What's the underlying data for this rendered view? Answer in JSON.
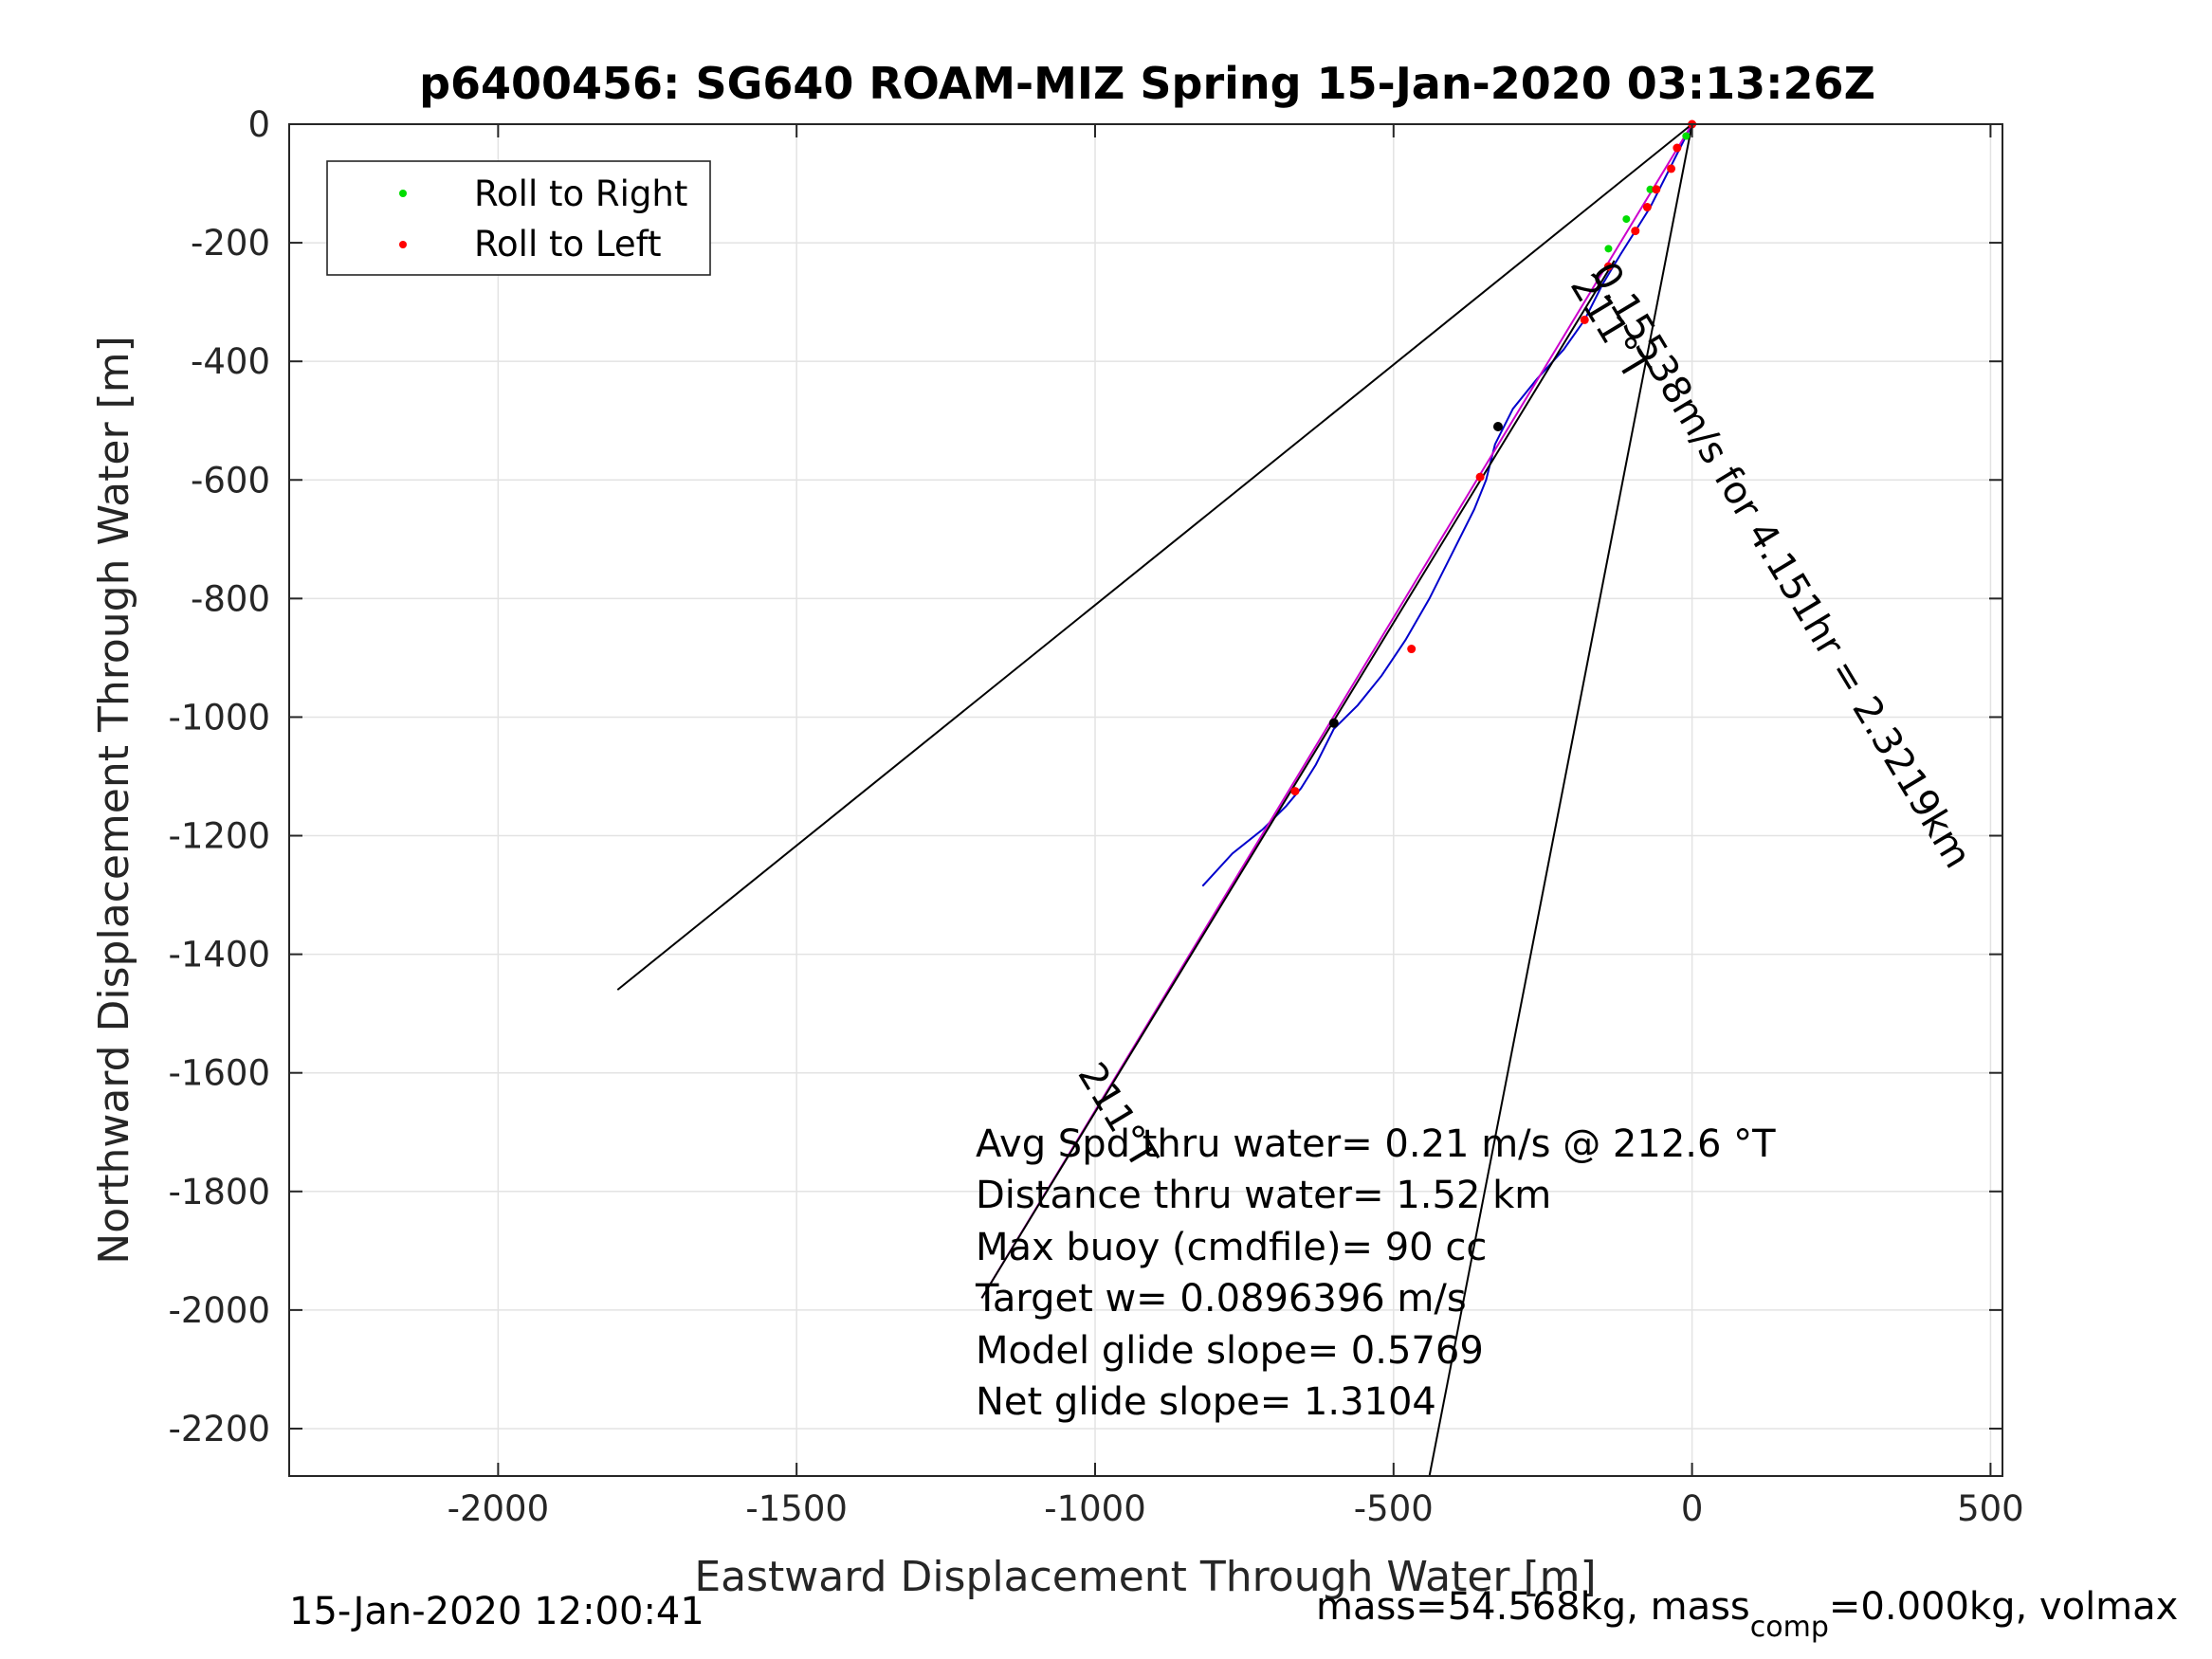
{
  "chart_data": {
    "type": "line",
    "title": "p6400456: SG640 ROAM-MIZ Spring 15-Jan-2020 03:13:26Z",
    "xlabel": "Eastward Displacement Through Water [m]",
    "ylabel": "Northward Displacement Through Water [m]",
    "xlim": [
      -2350,
      520
    ],
    "ylim": [
      -2280,
      0
    ],
    "xticks": [
      -2000,
      -1500,
      -1000,
      -500,
      0,
      500
    ],
    "yticks": [
      0,
      -200,
      -400,
      -600,
      -800,
      -1000,
      -1200,
      -1400,
      -1600,
      -1800,
      -2000,
      -2200
    ],
    "grid": true,
    "legend": {
      "placement": "top-left",
      "entries": [
        {
          "label": "Roll to Right",
          "color": "#00dd00"
        },
        {
          "label": "Roll to Left",
          "color": "#ff0000"
        }
      ]
    },
    "series": [
      {
        "kind": "track",
        "color": "#0000cc",
        "x": [
          0,
          -20,
          -45,
          -70,
          -95,
          -120,
          -150,
          -180,
          -215,
          -260,
          -300,
          -330,
          -345,
          -365,
          -400,
          -440,
          -480,
          -520,
          -560,
          -600,
          -630,
          -655,
          -680,
          -720,
          -770,
          -820
        ],
        "y": [
          0,
          -40,
          -90,
          -140,
          -180,
          -220,
          -270,
          -330,
          -380,
          -430,
          -480,
          -540,
          -600,
          -650,
          -720,
          -800,
          -870,
          -930,
          -980,
          -1020,
          -1080,
          -1120,
          -1150,
          -1190,
          -1230,
          -1285
        ]
      },
      {
        "kind": "line",
        "color": "#cc00cc",
        "x": [
          0,
          -1190
        ],
        "y": [
          0,
          -1980
        ]
      },
      {
        "kind": "line",
        "color": "#000000",
        "x": [
          0,
          -1800
        ],
        "y": [
          0,
          -1460
        ]
      },
      {
        "kind": "line",
        "color": "#000000",
        "x": [
          0,
          -440
        ],
        "y": [
          0,
          -2280
        ]
      },
      {
        "kind": "line",
        "color": "#000000",
        "x": [
          -130,
          -1190
        ],
        "y": [
          -230,
          -1980
        ]
      }
    ],
    "points_right": {
      "x": [
        -10,
        -70,
        -110,
        -140
      ],
      "y": [
        -20,
        -110,
        -160,
        -210
      ]
    },
    "points_left": {
      "x": [
        0,
        -25,
        -35,
        -60,
        -75,
        -95,
        -140,
        -180,
        -355,
        -470,
        -665
      ],
      "y": [
        0,
        -40,
        -75,
        -110,
        -140,
        -180,
        -240,
        -330,
        -595,
        -885,
        -1125
      ]
    },
    "points_black": {
      "x": [
        -325,
        -600
      ],
      "y": [
        -510,
        -1010
      ]
    },
    "annotations": [
      {
        "text": "0.15538m/s for 4.151hr = 2.3219km",
        "x": -170,
        "y": -250
      },
      {
        "text": "211°T",
        "x": -205,
        "y": -270
      },
      {
        "text": "211°T",
        "x": -1030,
        "y": -1600
      }
    ],
    "info_lines": [
      "Avg Spd thru water=  0.21 m/s @ 212.6 °T",
      "Distance thru water=  1.52 km",
      "Max buoy (cmdfile)= 90 cc",
      "Target w= 0.0896396 m/s",
      "Model glide slope= 0.5769",
      "Net glide slope= 1.3104"
    ]
  },
  "footer": {
    "timestamp": "15-Jan-2020 12:00:41",
    "mass_text_a": "mass=54.568kg, mass",
    "mass_sub": "comp",
    "mass_text_b": "=0.000kg, volmax"
  }
}
